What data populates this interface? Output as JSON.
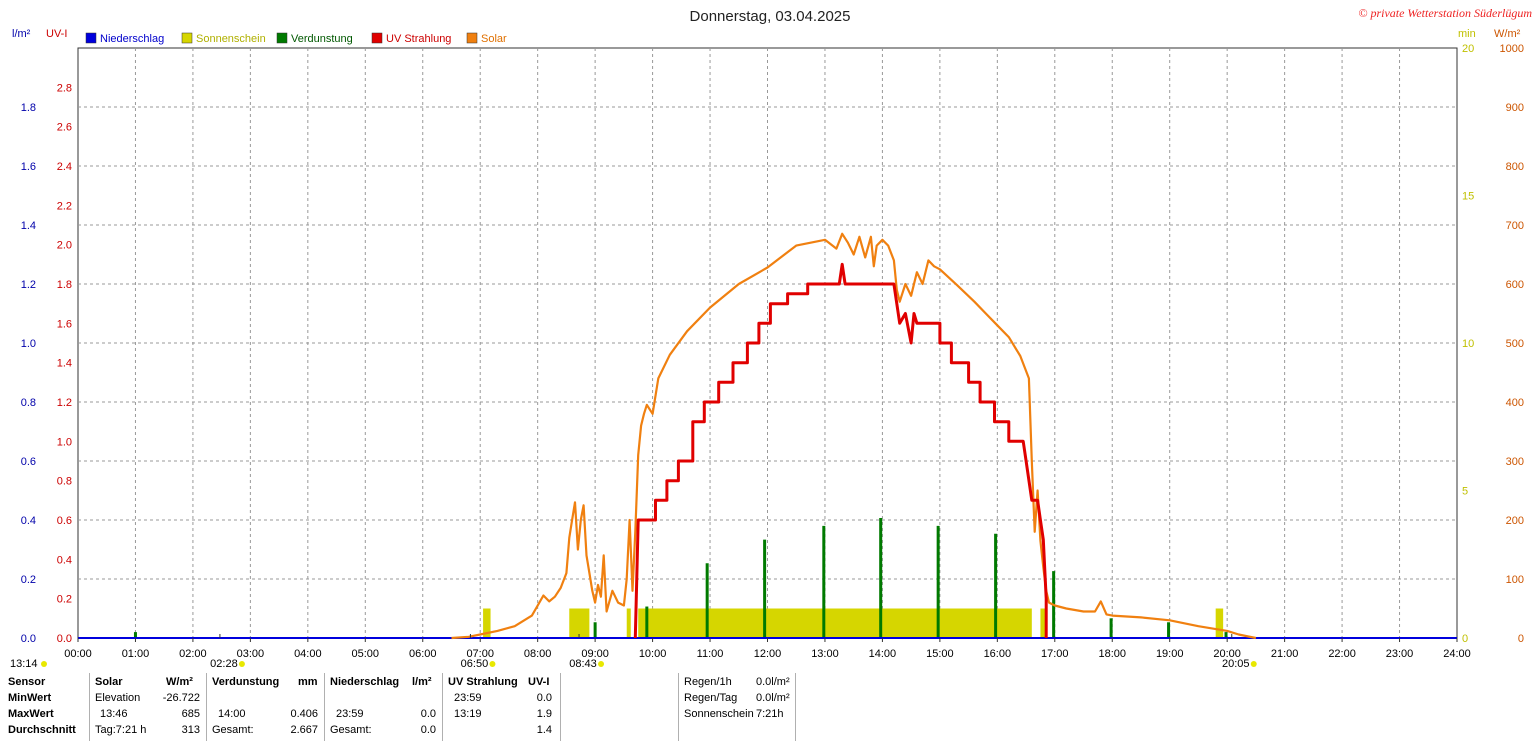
{
  "title": "Donnerstag, 03.04.2025",
  "copyright": "© private Wetterstation Süderlügum",
  "left_axis_units": {
    "primary": "l/m²",
    "uv": "UV-I"
  },
  "right_axis_units": {
    "minutes": "min",
    "solar": "W/m²"
  },
  "legend": [
    {
      "name": "Niederschlag",
      "color": "#0000dd",
      "text_color": "#0000cc"
    },
    {
      "name": "Sonnenschein",
      "color": "#d6d600",
      "text_color": "#b0b000"
    },
    {
      "name": "Verdunstung",
      "color": "#007a00",
      "text_color": "#005800"
    },
    {
      "name": "UV Strahlung",
      "color": "#e00000",
      "text_color": "#cc0000"
    },
    {
      "name": "Solar",
      "color": "#f08010",
      "text_color": "#e07000"
    }
  ],
  "chart_data": {
    "type": "line",
    "x_unit": "hours",
    "xlim": [
      0,
      24
    ],
    "x_ticks": [
      "00:00",
      "01:00",
      "02:00",
      "03:00",
      "04:00",
      "05:00",
      "06:00",
      "07:00",
      "08:00",
      "09:00",
      "10:00",
      "11:00",
      "12:00",
      "13:00",
      "14:00",
      "15:00",
      "16:00",
      "17:00",
      "18:00",
      "19:00",
      "20:00",
      "21:00",
      "22:00",
      "23:00",
      "24:00"
    ],
    "axes": {
      "precip": {
        "label": "l/m²",
        "range": [
          0,
          2.0
        ],
        "ticks": [
          "0.0",
          "0.2",
          "0.4",
          "0.6",
          "0.8",
          "1.0",
          "1.2",
          "1.4",
          "1.6",
          "1.8"
        ],
        "color": "#0000aa"
      },
      "uv": {
        "label": "UV-I",
        "range": [
          0,
          3.0
        ],
        "ticks": [
          "0.0",
          "0.2",
          "0.4",
          "0.6",
          "0.8",
          "1.0",
          "1.2",
          "1.4",
          "1.6",
          "1.8",
          "2.0",
          "2.2",
          "2.4",
          "2.6",
          "2.8"
        ],
        "color": "#cc0000"
      },
      "minutes": {
        "label": "min",
        "range": [
          0,
          20
        ],
        "ticks": [
          "0",
          "5",
          "10",
          "15",
          "20"
        ],
        "color": "#c0c000"
      },
      "solar": {
        "label": "W/m²",
        "range": [
          0,
          1000
        ],
        "ticks": [
          "0",
          "100",
          "200",
          "300",
          "400",
          "500",
          "600",
          "700",
          "800",
          "900",
          "1000"
        ],
        "color": "#cc5500"
      }
    },
    "series": [
      {
        "name": "Solar",
        "axis": "solar",
        "points": [
          [
            6.5,
            0
          ],
          [
            6.8,
            2
          ],
          [
            7.0,
            6
          ],
          [
            7.3,
            12
          ],
          [
            7.6,
            20
          ],
          [
            7.9,
            38
          ],
          [
            8.0,
            55
          ],
          [
            8.1,
            72
          ],
          [
            8.2,
            62
          ],
          [
            8.3,
            70
          ],
          [
            8.4,
            85
          ],
          [
            8.5,
            110
          ],
          [
            8.55,
            170
          ],
          [
            8.6,
            200
          ],
          [
            8.65,
            230
          ],
          [
            8.7,
            150
          ],
          [
            8.75,
            200
          ],
          [
            8.8,
            225
          ],
          [
            8.85,
            140
          ],
          [
            8.9,
            110
          ],
          [
            8.95,
            80
          ],
          [
            9.0,
            60
          ],
          [
            9.05,
            90
          ],
          [
            9.1,
            70
          ],
          [
            9.15,
            140
          ],
          [
            9.2,
            45
          ],
          [
            9.3,
            80
          ],
          [
            9.4,
            60
          ],
          [
            9.5,
            55
          ],
          [
            9.55,
            100
          ],
          [
            9.6,
            200
          ],
          [
            9.65,
            80
          ],
          [
            9.7,
            180
          ],
          [
            9.75,
            310
          ],
          [
            9.8,
            360
          ],
          [
            9.85,
            380
          ],
          [
            9.9,
            395
          ],
          [
            10.0,
            380
          ],
          [
            10.1,
            440
          ],
          [
            10.3,
            480
          ],
          [
            10.6,
            520
          ],
          [
            11.0,
            560
          ],
          [
            11.5,
            600
          ],
          [
            12.0,
            628
          ],
          [
            12.5,
            665
          ],
          [
            13.0,
            675
          ],
          [
            13.2,
            660
          ],
          [
            13.3,
            685
          ],
          [
            13.4,
            670
          ],
          [
            13.5,
            650
          ],
          [
            13.6,
            680
          ],
          [
            13.7,
            645
          ],
          [
            13.8,
            680
          ],
          [
            13.85,
            630
          ],
          [
            13.9,
            665
          ],
          [
            14.0,
            675
          ],
          [
            14.1,
            665
          ],
          [
            14.2,
            640
          ],
          [
            14.25,
            590
          ],
          [
            14.3,
            570
          ],
          [
            14.4,
            600
          ],
          [
            14.5,
            580
          ],
          [
            14.6,
            620
          ],
          [
            14.7,
            600
          ],
          [
            14.8,
            640
          ],
          [
            14.9,
            630
          ],
          [
            15.0,
            625
          ],
          [
            15.3,
            598
          ],
          [
            15.6,
            570
          ],
          [
            15.8,
            550
          ],
          [
            16.0,
            530
          ],
          [
            16.2,
            510
          ],
          [
            16.4,
            478
          ],
          [
            16.55,
            440
          ],
          [
            16.6,
            300
          ],
          [
            16.65,
            180
          ],
          [
            16.7,
            250
          ],
          [
            16.75,
            165
          ],
          [
            16.8,
            120
          ],
          [
            16.85,
            80
          ],
          [
            16.9,
            60
          ],
          [
            17.0,
            55
          ],
          [
            17.2,
            50
          ],
          [
            17.5,
            45
          ],
          [
            17.7,
            45
          ],
          [
            17.8,
            62
          ],
          [
            17.9,
            40
          ],
          [
            18.0,
            38
          ],
          [
            18.5,
            35
          ],
          [
            19.0,
            30
          ],
          [
            19.5,
            20
          ],
          [
            20.0,
            12
          ],
          [
            20.2,
            6
          ],
          [
            20.5,
            0
          ]
        ]
      },
      {
        "name": "UV Strahlung",
        "axis": "uv",
        "points": [
          [
            9.7,
            0
          ],
          [
            9.75,
            0.6
          ],
          [
            10.05,
            0.6
          ],
          [
            10.05,
            0.7
          ],
          [
            10.25,
            0.7
          ],
          [
            10.25,
            0.8
          ],
          [
            10.45,
            0.8
          ],
          [
            10.45,
            0.9
          ],
          [
            10.7,
            0.9
          ],
          [
            10.7,
            1.1
          ],
          [
            10.9,
            1.1
          ],
          [
            10.9,
            1.2
          ],
          [
            11.15,
            1.2
          ],
          [
            11.15,
            1.3
          ],
          [
            11.4,
            1.3
          ],
          [
            11.4,
            1.4
          ],
          [
            11.65,
            1.4
          ],
          [
            11.65,
            1.5
          ],
          [
            11.85,
            1.5
          ],
          [
            11.85,
            1.6
          ],
          [
            12.05,
            1.6
          ],
          [
            12.05,
            1.7
          ],
          [
            12.35,
            1.7
          ],
          [
            12.35,
            1.75
          ],
          [
            12.7,
            1.75
          ],
          [
            12.7,
            1.8
          ],
          [
            13.25,
            1.8
          ],
          [
            13.3,
            1.9
          ],
          [
            13.35,
            1.8
          ],
          [
            14.2,
            1.8
          ],
          [
            14.3,
            1.6
          ],
          [
            14.4,
            1.65
          ],
          [
            14.5,
            1.5
          ],
          [
            14.55,
            1.65
          ],
          [
            14.6,
            1.6
          ],
          [
            15.0,
            1.6
          ],
          [
            15.0,
            1.5
          ],
          [
            15.2,
            1.5
          ],
          [
            15.2,
            1.4
          ],
          [
            15.5,
            1.4
          ],
          [
            15.5,
            1.3
          ],
          [
            15.7,
            1.3
          ],
          [
            15.7,
            1.2
          ],
          [
            15.95,
            1.2
          ],
          [
            15.95,
            1.1
          ],
          [
            16.2,
            1.1
          ],
          [
            16.2,
            1.0
          ],
          [
            16.45,
            1.0
          ],
          [
            16.5,
            0.9
          ],
          [
            16.6,
            0.7
          ],
          [
            16.7,
            0.7
          ],
          [
            16.75,
            0.6
          ],
          [
            16.8,
            0.5
          ],
          [
            16.85,
            0.2
          ],
          [
            16.85,
            0
          ]
        ]
      },
      {
        "name": "Sonnenschein",
        "axis": "minutes",
        "bars": [
          [
            7.05,
            7.18,
            1
          ],
          [
            8.55,
            8.9,
            1
          ],
          [
            9.55,
            9.62,
            1
          ],
          [
            9.75,
            16.6,
            1
          ],
          [
            16.75,
            16.85,
            1
          ],
          [
            19.8,
            19.93,
            1
          ]
        ]
      },
      {
        "name": "Verdunstung",
        "axis": "uv",
        "spikes": [
          [
            1.0,
            0.03
          ],
          [
            9.0,
            0.08
          ],
          [
            9.9,
            0.16
          ],
          [
            10.95,
            0.38
          ],
          [
            11.95,
            0.5
          ],
          [
            12.98,
            0.57
          ],
          [
            13.97,
            0.61
          ],
          [
            14.97,
            0.57
          ],
          [
            15.97,
            0.53
          ],
          [
            16.98,
            0.34
          ],
          [
            17.98,
            0.1
          ],
          [
            18.98,
            0.08
          ],
          [
            19.98,
            0.03
          ]
        ]
      },
      {
        "name": "Niederschlag",
        "axis": "precip",
        "points": [
          [
            0,
            0
          ],
          [
            24,
            0
          ]
        ]
      }
    ],
    "markers": [
      {
        "label": "13:14",
        "position": "bottom-left"
      },
      {
        "label": "02:28",
        "x": 2.47
      },
      {
        "label": "06:50",
        "x": 6.83
      },
      {
        "label": "08:43",
        "x": 8.72
      },
      {
        "label": "20:05",
        "x": 20.08
      }
    ]
  },
  "stats": {
    "headers": {
      "sensor": "Sensor",
      "solar": "Solar",
      "solar_unit": "W/m²",
      "evap": "Verdunstung",
      "evap_unit": "mm",
      "precip": "Niederschlag",
      "precip_unit": "l/m²",
      "uv": "UV Strahlung",
      "uv_unit": "UV-I"
    },
    "row_labels": {
      "min": "MinWert",
      "max": "MaxWert",
      "avg": "Durchschnitt"
    },
    "solar": {
      "min_label": "Elevation",
      "min_value": "-26.722",
      "max_time": "13:46",
      "max_value": "685",
      "avg_label": "Tag:7:21 h",
      "avg_value": "313"
    },
    "evap": {
      "max_time": "14:00",
      "max_value": "0.406",
      "total_label": "Gesamt:",
      "total_value": "2.667"
    },
    "precip": {
      "max_time": "23:59",
      "max_value": "0.0",
      "total_label": "Gesamt:",
      "total_value": "0.0"
    },
    "uv": {
      "min_time": "23:59",
      "min_value": "0.0",
      "max_time": "13:19",
      "max_value": "1.9",
      "avg_value": "1.4"
    },
    "right": [
      {
        "label": "Regen/1h",
        "value": "0.0l/m²"
      },
      {
        "label": "Regen/Tag",
        "value": "0.0l/m²"
      },
      {
        "label": "Sonnenschein",
        "value": "7:21h"
      }
    ]
  }
}
